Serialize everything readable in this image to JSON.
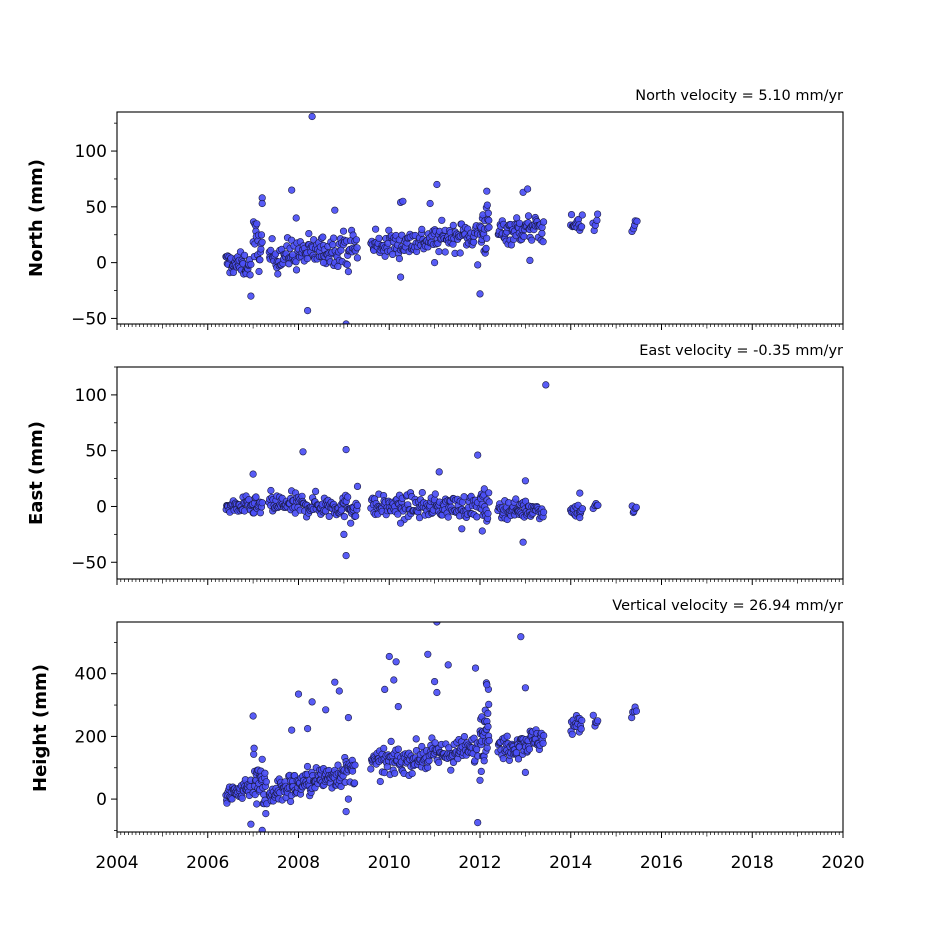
{
  "colors": {
    "marker": "#4a4ef5",
    "marker_edge": "#1a1a40"
  },
  "x_axis": {
    "range": [
      2004,
      2020
    ],
    "ticks": [
      2004,
      2006,
      2008,
      2010,
      2012,
      2014,
      2016,
      2018,
      2020
    ],
    "tick_labels": [
      "2004",
      "2006",
      "2008",
      "2010",
      "2012",
      "2014",
      "2016",
      "2018",
      "2020"
    ]
  },
  "chart_data": [
    {
      "type": "scatter",
      "ylabel": "North (mm)",
      "annotation": "North velocity = 5.10 mm/yr",
      "ylim": [
        -55,
        135
      ],
      "y_ticks": [
        -50,
        0,
        50,
        100
      ],
      "y_tick_labels": [
        "−50",
        "0",
        "50",
        "100"
      ],
      "segments": [
        {
          "x": [
            2006.4,
            2006.95
          ],
          "y": [
            0,
            -3
          ],
          "noise": 5,
          "n": 40
        },
        {
          "x": [
            2007.0,
            2007.2
          ],
          "y": [
            22,
            10
          ],
          "noise": 10,
          "n": 20
        },
        {
          "x": [
            2007.35,
            2009.3
          ],
          "y": [
            5,
            15
          ],
          "noise": 7,
          "n": 130
        },
        {
          "x": [
            2009.6,
            2011.95
          ],
          "y": [
            14,
            26
          ],
          "noise": 6,
          "n": 150
        },
        {
          "x": [
            2012.0,
            2012.2
          ],
          "y": [
            28,
            30
          ],
          "noise": 12,
          "n": 25
        },
        {
          "x": [
            2012.4,
            2013.4
          ],
          "y": [
            28,
            31
          ],
          "noise": 6,
          "n": 70
        },
        {
          "x": [
            2014.0,
            2014.25
          ],
          "y": [
            34,
            35
          ],
          "noise": 4,
          "n": 16
        },
        {
          "x": [
            2014.5,
            2014.6
          ],
          "y": [
            35,
            35
          ],
          "noise": 4,
          "n": 5
        },
        {
          "x": [
            2015.35,
            2015.45
          ],
          "y": [
            33,
            33
          ],
          "noise": 3,
          "n": 5
        }
      ],
      "outliers": [
        [
          2008.3,
          131
        ],
        [
          2007.85,
          65
        ],
        [
          2008.2,
          -43
        ],
        [
          2009.05,
          -55
        ],
        [
          2006.95,
          -30
        ],
        [
          2007.2,
          58
        ],
        [
          2007.2,
          53
        ],
        [
          2008.8,
          47
        ],
        [
          2010.25,
          54
        ],
        [
          2010.3,
          55
        ],
        [
          2010.9,
          53
        ],
        [
          2011.05,
          70
        ],
        [
          2012.15,
          64
        ],
        [
          2012.0,
          -28
        ],
        [
          2010.25,
          -13
        ],
        [
          2011.0,
          0
        ],
        [
          2012.95,
          63
        ],
        [
          2013.05,
          66
        ],
        [
          2009.1,
          -8
        ],
        [
          2013.1,
          2
        ],
        [
          2007.95,
          40
        ],
        [
          2008.55,
          0
        ],
        [
          2009.7,
          30
        ],
        [
          2011.95,
          -2
        ]
      ]
    },
    {
      "type": "scatter",
      "ylabel": "East (mm)",
      "annotation": "East velocity = -0.35 mm/yr",
      "ylim": [
        -65,
        125
      ],
      "y_ticks": [
        -50,
        0,
        50,
        100
      ],
      "y_tick_labels": [
        "−50",
        "0",
        "50",
        "100"
      ],
      "segments": [
        {
          "x": [
            2006.4,
            2007.2
          ],
          "y": [
            0,
            0
          ],
          "noise": 4,
          "n": 50
        },
        {
          "x": [
            2007.35,
            2009.3
          ],
          "y": [
            2,
            0
          ],
          "noise": 5,
          "n": 130
        },
        {
          "x": [
            2009.6,
            2011.95
          ],
          "y": [
            0,
            0
          ],
          "noise": 5,
          "n": 150
        },
        {
          "x": [
            2012.0,
            2012.2
          ],
          "y": [
            0,
            -2
          ],
          "noise": 8,
          "n": 20
        },
        {
          "x": [
            2012.4,
            2013.4
          ],
          "y": [
            -2,
            -3
          ],
          "noise": 4,
          "n": 70
        },
        {
          "x": [
            2014.0,
            2014.25
          ],
          "y": [
            -4,
            -3
          ],
          "noise": 3,
          "n": 16
        },
        {
          "x": [
            2014.5,
            2014.6
          ],
          "y": [
            0,
            0
          ],
          "noise": 4,
          "n": 5
        },
        {
          "x": [
            2015.35,
            2015.45
          ],
          "y": [
            -3,
            -3
          ],
          "noise": 2,
          "n": 5
        }
      ],
      "outliers": [
        [
          2013.45,
          109
        ],
        [
          2009.05,
          51
        ],
        [
          2008.1,
          49
        ],
        [
          2011.95,
          46
        ],
        [
          2009.05,
          -44
        ],
        [
          2012.95,
          -32
        ],
        [
          2011.1,
          31
        ],
        [
          2007.0,
          29
        ],
        [
          2009.0,
          -25
        ],
        [
          2009.3,
          18
        ],
        [
          2013.0,
          23
        ],
        [
          2012.05,
          -22
        ],
        [
          2009.15,
          -15
        ],
        [
          2014.2,
          12
        ],
        [
          2010.25,
          -15
        ],
        [
          2011.6,
          -20
        ],
        [
          2014.2,
          -10
        ]
      ]
    },
    {
      "type": "scatter",
      "ylabel": "Height (mm)",
      "annotation": "Vertical velocity = 26.94 mm/yr",
      "ylim": [
        -105,
        565
      ],
      "y_ticks": [
        0,
        200,
        400
      ],
      "y_tick_labels": [
        "0",
        "200",
        "400"
      ],
      "segments": [
        {
          "x": [
            2006.4,
            2006.95
          ],
          "y": [
            5,
            45
          ],
          "noise": 18,
          "n": 45
        },
        {
          "x": [
            2007.0,
            2007.3
          ],
          "y": [
            100,
            10
          ],
          "noise": 45,
          "n": 35
        },
        {
          "x": [
            2007.35,
            2009.25
          ],
          "y": [
            20,
            95
          ],
          "noise": 22,
          "n": 150
        },
        {
          "x": [
            2009.6,
            2011.95
          ],
          "y": [
            110,
            160
          ],
          "noise": 22,
          "n": 160
        },
        {
          "x": [
            2012.0,
            2012.2
          ],
          "y": [
            200,
            270
          ],
          "noise": 50,
          "n": 35
        },
        {
          "x": [
            2012.4,
            2013.4
          ],
          "y": [
            160,
            195
          ],
          "noise": 20,
          "n": 75
        },
        {
          "x": [
            2014.0,
            2014.25
          ],
          "y": [
            235,
            240
          ],
          "noise": 15,
          "n": 16
        },
        {
          "x": [
            2014.5,
            2014.6
          ],
          "y": [
            250,
            250
          ],
          "noise": 15,
          "n": 5
        },
        {
          "x": [
            2015.35,
            2015.45
          ],
          "y": [
            278,
            280
          ],
          "noise": 10,
          "n": 5
        }
      ],
      "outliers": [
        [
          2011.05,
          565
        ],
        [
          2012.9,
          518
        ],
        [
          2010.0,
          455
        ],
        [
          2010.15,
          438
        ],
        [
          2010.85,
          462
        ],
        [
          2011.3,
          428
        ],
        [
          2011.9,
          418
        ],
        [
          2008.8,
          373
        ],
        [
          2009.9,
          350
        ],
        [
          2010.1,
          380
        ],
        [
          2008.0,
          335
        ],
        [
          2008.2,
          225
        ],
        [
          2007.85,
          220
        ],
        [
          2008.3,
          310
        ],
        [
          2008.6,
          285
        ],
        [
          2008.9,
          345
        ],
        [
          2009.1,
          260
        ],
        [
          2007.0,
          265
        ],
        [
          2007.2,
          -100
        ],
        [
          2006.95,
          -80
        ],
        [
          2011.95,
          -75
        ],
        [
          2011.0,
          375
        ],
        [
          2010.2,
          295
        ],
        [
          2012.15,
          365
        ],
        [
          2013.0,
          355
        ],
        [
          2013.0,
          85
        ],
        [
          2009.05,
          -40
        ],
        [
          2009.1,
          0
        ],
        [
          2012.0,
          60
        ],
        [
          2011.05,
          340
        ]
      ]
    }
  ]
}
